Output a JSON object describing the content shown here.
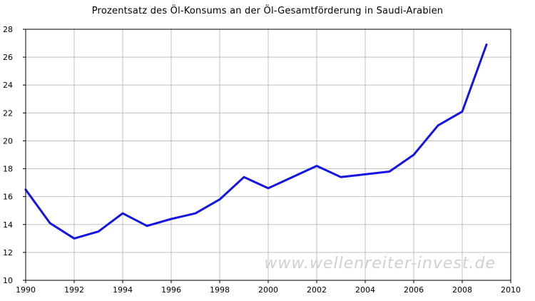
{
  "chart_data": {
    "type": "line",
    "title": "Prozentsatz des Öl-Konsums an der Öl-Gesamtförderung in Saudi-Arabien",
    "xlabel": "",
    "ylabel": "",
    "xlim": [
      1990,
      2010
    ],
    "ylim": [
      10,
      28
    ],
    "x_ticks": [
      1990,
      1992,
      1994,
      1996,
      1998,
      2000,
      2002,
      2004,
      2006,
      2008,
      2010
    ],
    "y_ticks": [
      10,
      12,
      14,
      16,
      18,
      20,
      22,
      24,
      26,
      28
    ],
    "grid": true,
    "series": [
      {
        "color": "#1414e6",
        "x": [
          1990,
          1991,
          1992,
          1993,
          1994,
          1995,
          1996,
          1997,
          1998,
          1999,
          2000,
          2001,
          2002,
          2003,
          2004,
          2005,
          2006,
          2007,
          2008,
          2009
        ],
        "y": [
          16.5,
          14.1,
          13.0,
          13.5,
          14.8,
          13.9,
          14.4,
          14.8,
          15.8,
          17.4,
          16.6,
          17.4,
          18.2,
          17.4,
          17.6,
          17.8,
          19.0,
          21.1,
          22.1,
          26.9
        ]
      }
    ],
    "watermark": "www.wellenreiter-invest.de"
  }
}
